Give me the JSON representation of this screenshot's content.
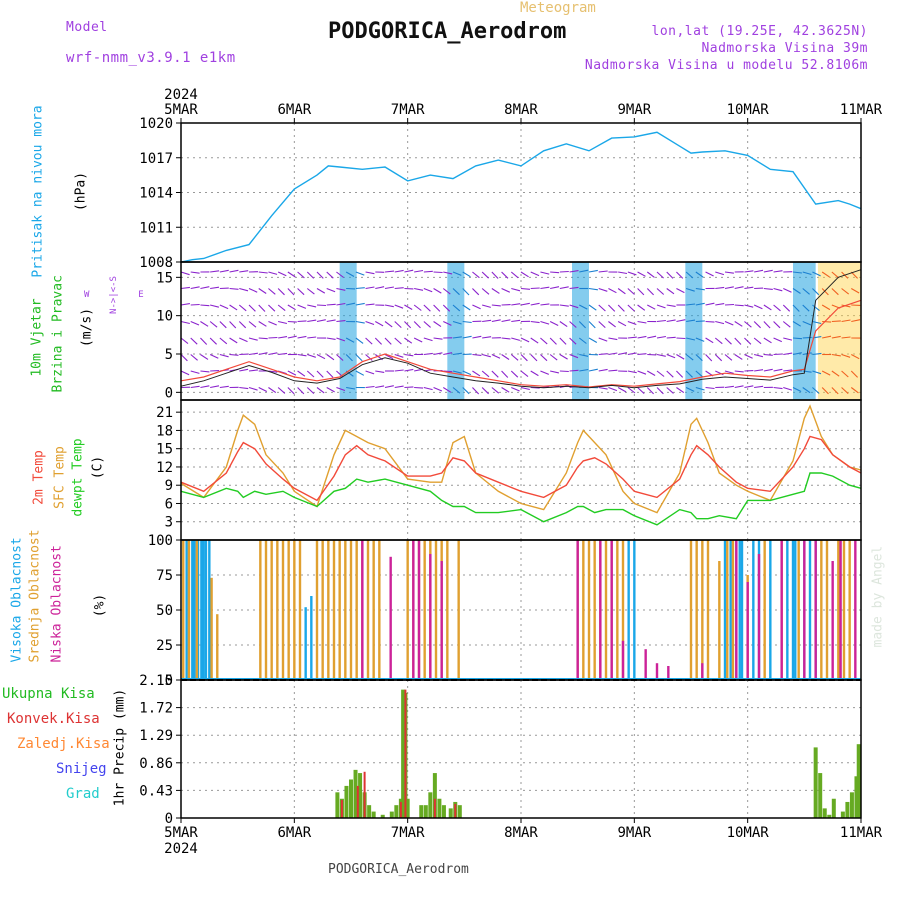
{
  "header": {
    "model_label": "Model",
    "model_name": "wrf-nmm_v3.9.1 e1km",
    "meteogram_label": "Meteogram",
    "station": "PODGORICA_Aerodrom",
    "lonlat": "lon,lat (19.25E, 42.3625N)",
    "altitude": "Nadmorska Visina 39m",
    "model_altitude": "Nadmorska Visina u modelu 52.8106m"
  },
  "footer": {
    "station": "PODGORICA_Aerodrom",
    "credit": "made by Angel"
  },
  "colors": {
    "pressure": "#1aa7e8",
    "wind_label": "#22bb22",
    "wind_barbs": "#8a22cc",
    "temp2m": "#f24a3a",
    "sfc": "#e0a030",
    "dew": "#22cc22",
    "high_cloud": "#1aa7e8",
    "mid_cloud": "#e0a030",
    "low_cloud": "#cc2299",
    "total_precip": "#66aa22",
    "conv_precip": "#dd3333",
    "frozen": "#ff8833",
    "snow": "#4444ee",
    "grad": "#22cccc"
  },
  "chart_data": [
    {
      "type": "line",
      "id": "pressure",
      "ylabel_lines": [
        "Pritisak na nivou mora",
        "(hPa)"
      ],
      "xticks": [
        "5MAR",
        "6MAR",
        "7MAR",
        "8MAR",
        "9MAR",
        "10MAR",
        "11MAR"
      ],
      "year_label": "2024",
      "ylim": [
        1008,
        1020
      ],
      "yticks": [
        1008,
        1011,
        1014,
        1017,
        1020
      ],
      "x": [
        0,
        0.1,
        0.2,
        0.4,
        0.6,
        0.8,
        1.0,
        1.2,
        1.3,
        1.4,
        1.6,
        1.8,
        2.0,
        2.2,
        2.4,
        2.6,
        2.8,
        3.0,
        3.2,
        3.4,
        3.6,
        3.8,
        4.0,
        4.2,
        4.4,
        4.5,
        4.6,
        4.8,
        5.0,
        5.2,
        5.4,
        5.6,
        5.8,
        5.9,
        6.0
      ],
      "series": [
        {
          "values": [
            1008,
            1008.2,
            1008.3,
            1009,
            1009.5,
            1012,
            1014.3,
            1015.5,
            1016.3,
            1016.2,
            1016,
            1016.2,
            1015,
            1015.5,
            1015.2,
            1016.3,
            1016.8,
            1016.3,
            1017.6,
            1018.2,
            1017.6,
            1018.7,
            1018.8,
            1019.2,
            1018,
            1017.4,
            1017.5,
            1017.6,
            1017.2,
            1016,
            1015.8,
            1013,
            1013.3,
            1013,
            1012.6
          ]
        }
      ]
    },
    {
      "type": "line",
      "id": "wind",
      "ylabel_lines": [
        "10m Vjetar",
        "Brzina i Pravac",
        "(m/s)"
      ],
      "ylim": [
        -1,
        17
      ],
      "yticks": [
        0,
        5,
        10,
        15
      ],
      "x": [
        0,
        0.2,
        0.4,
        0.6,
        0.8,
        1.0,
        1.2,
        1.4,
        1.6,
        1.8,
        2.0,
        2.2,
        2.4,
        2.6,
        2.8,
        3.0,
        3.2,
        3.4,
        3.6,
        3.8,
        4.0,
        4.2,
        4.4,
        4.6,
        4.8,
        5.0,
        5.2,
        5.4,
        5.5,
        5.6,
        5.8,
        6.0
      ],
      "series": [
        {
          "values": [
            1.5,
            2,
            3,
            4,
            3,
            2,
            1.5,
            2,
            4,
            5,
            4,
            3,
            2.5,
            2,
            1.5,
            1,
            0.8,
            1,
            0.7,
            1,
            0.8,
            1.1,
            1.4,
            2,
            2.5,
            2.2,
            2,
            2.8,
            3,
            8,
            11,
            12
          ]
        },
        {
          "values": [
            0.8,
            1.5,
            2.5,
            3.5,
            2.6,
            1.5,
            1.2,
            1.8,
            3.6,
            4.5,
            3.8,
            2.5,
            2,
            1.5,
            1.2,
            0.8,
            0.6,
            0.8,
            0.6,
            0.9,
            0.6,
            0.9,
            1.1,
            1.7,
            2,
            1.8,
            1.6,
            2.3,
            2.5,
            12,
            15,
            16
          ]
        }
      ]
    },
    {
      "type": "line",
      "id": "temperature",
      "ylabel_lines": [
        "2m Temp",
        "SFC Temp",
        "dewpt Temp",
        "(C)"
      ],
      "ylim": [
        0,
        23
      ],
      "yticks": [
        3,
        6,
        9,
        12,
        15,
        18,
        21
      ],
      "x": [
        0,
        0.2,
        0.4,
        0.5,
        0.55,
        0.65,
        0.75,
        0.9,
        1.0,
        1.2,
        1.35,
        1.45,
        1.55,
        1.65,
        1.8,
        2.0,
        2.2,
        2.3,
        2.4,
        2.5,
        2.6,
        2.8,
        3.0,
        3.2,
        3.4,
        3.5,
        3.55,
        3.65,
        3.75,
        3.9,
        4.0,
        4.2,
        4.4,
        4.5,
        4.55,
        4.65,
        4.75,
        4.9,
        5.0,
        5.2,
        5.4,
        5.5,
        5.55,
        5.65,
        5.75,
        5.9,
        6.0
      ],
      "series": [
        {
          "name": "2m Temp",
          "values": [
            9.5,
            8,
            11,
            14.5,
            16,
            15,
            12.5,
            10,
            8.5,
            6.5,
            10.5,
            14,
            15.5,
            14,
            13,
            10.5,
            10.5,
            11,
            13.5,
            13,
            11,
            9.5,
            8,
            7,
            9,
            12,
            13,
            13.5,
            12.5,
            10,
            8,
            7,
            10,
            14,
            15.5,
            14,
            12,
            9.5,
            8.5,
            8,
            12,
            15,
            17,
            16.5,
            14,
            12,
            11
          ]
        },
        {
          "name": "SFC Temp",
          "values": [
            9.3,
            7,
            12,
            18,
            20.5,
            19,
            14,
            11,
            8,
            5.5,
            14,
            18,
            17,
            16,
            15,
            10,
            9.5,
            9.5,
            16,
            17,
            11,
            8,
            6,
            5,
            11,
            16,
            18,
            16,
            14,
            8,
            6,
            4.5,
            11,
            19,
            20,
            16,
            11,
            9,
            8,
            6.5,
            13,
            20,
            22,
            17,
            14,
            12,
            11.5
          ]
        },
        {
          "name": "dewpt Temp",
          "values": [
            8,
            7,
            8.5,
            8,
            7,
            8,
            7.5,
            8,
            7,
            5.5,
            8,
            8.5,
            10,
            9.5,
            10,
            9,
            8,
            6.5,
            5.5,
            5.5,
            4.5,
            4.5,
            5,
            3,
            4.5,
            5.5,
            5.5,
            4.5,
            5,
            5,
            4,
            2.5,
            5,
            4.5,
            3.5,
            3.5,
            4,
            3.5,
            6.5,
            6.5,
            7.5,
            8,
            11,
            11,
            10.5,
            9,
            8.5
          ]
        }
      ]
    },
    {
      "type": "bar",
      "id": "clouds",
      "ylabel_lines": [
        "Visoka Oblacnost",
        "Srednja Oblacnost",
        "Niska Oblacnost",
        "(%)"
      ],
      "ylim": [
        0,
        100
      ],
      "yticks": [
        0,
        25,
        50,
        75,
        100
      ],
      "series": [
        {
          "name": "Visoka Oblacnost",
          "x": [
            0.05,
            0.1,
            0.12,
            0.15,
            0.18,
            0.2,
            0.22,
            0.25,
            1.1,
            1.15,
            3.95,
            4.0,
            4.8,
            4.85,
            4.9,
            4.93,
            4.95,
            5.05,
            5.1,
            5.2,
            5.35,
            5.4,
            5.42,
            5.5,
            5.55,
            5.6
          ],
          "values": [
            100,
            100,
            100,
            100,
            100,
            100,
            100,
            100,
            52,
            60,
            100,
            100,
            100,
            100,
            100,
            100,
            100,
            100,
            100,
            100,
            100,
            100,
            100,
            100,
            100,
            100
          ]
        },
        {
          "name": "Srednja Oblacnost",
          "x": [
            0.02,
            0.07,
            0.14,
            0.27,
            0.32,
            0.7,
            0.75,
            0.8,
            0.85,
            0.9,
            0.95,
            1.0,
            1.05,
            1.2,
            1.25,
            1.3,
            1.35,
            1.4,
            1.45,
            1.5,
            1.55,
            1.6,
            1.65,
            1.7,
            1.75,
            2.0,
            2.05,
            2.1,
            2.15,
            2.2,
            2.25,
            2.3,
            2.35,
            2.45,
            3.5,
            3.55,
            3.6,
            3.65,
            3.7,
            3.75,
            3.8,
            3.85,
            3.9,
            4.5,
            4.55,
            4.6,
            4.65,
            4.75,
            4.82,
            4.87,
            5.0,
            5.15,
            5.3,
            5.45,
            5.65,
            5.7,
            5.8,
            5.85,
            5.9
          ],
          "values": [
            100,
            100,
            100,
            73,
            47,
            100,
            100,
            100,
            100,
            100,
            100,
            100,
            100,
            100,
            100,
            100,
            100,
            100,
            100,
            100,
            100,
            100,
            100,
            100,
            100,
            100,
            100,
            100,
            100,
            100,
            100,
            100,
            100,
            100,
            100,
            100,
            100,
            100,
            100,
            100,
            100,
            100,
            100,
            100,
            100,
            100,
            100,
            85,
            100,
            100,
            75,
            100,
            100,
            100,
            100,
            100,
            100,
            100,
            100
          ]
        },
        {
          "name": "Niska Oblacnost",
          "x": [
            1.6,
            1.85,
            2.05,
            2.1,
            2.2,
            2.3,
            3.5,
            3.7,
            3.8,
            3.9,
            4.1,
            4.2,
            4.3,
            4.6,
            4.9,
            5.0,
            5.1,
            5.3,
            5.5,
            5.6,
            5.75,
            5.82,
            5.95
          ],
          "values": [
            100,
            88,
            100,
            100,
            90,
            85,
            100,
            100,
            100,
            28,
            22,
            12,
            10,
            12,
            100,
            70,
            90,
            100,
            100,
            100,
            85,
            100,
            100
          ]
        }
      ]
    },
    {
      "type": "bar",
      "id": "precip",
      "ylabel_lines": [
        "1hr Precip (mm)"
      ],
      "legend": [
        "Ukupna Kisa",
        "Konvek.Kisa",
        "Zaledj.Kisa",
        "Snijeg",
        "Grad"
      ],
      "ylim": [
        0,
        2.15
      ],
      "yticks": [
        0,
        0.43,
        0.86,
        1.29,
        1.72,
        2.15
      ],
      "xticks": [
        "5MAR",
        "6MAR",
        "7MAR",
        "8MAR",
        "9MAR",
        "10MAR",
        "11MAR"
      ],
      "year_label": "2024",
      "series": [
        {
          "name": "Ukupna Kisa",
          "x": [
            1.38,
            1.42,
            1.46,
            1.5,
            1.54,
            1.58,
            1.62,
            1.66,
            1.7,
            1.78,
            1.86,
            1.9,
            1.94,
            1.96,
            1.98,
            2.0,
            2.12,
            2.16,
            2.2,
            2.24,
            2.28,
            2.32,
            2.38,
            2.42,
            2.46,
            5.6,
            5.64,
            5.68,
            5.72,
            5.76,
            5.84,
            5.88,
            5.92,
            5.96,
            5.98
          ],
          "values": [
            0.4,
            0.3,
            0.5,
            0.6,
            0.75,
            0.7,
            0.4,
            0.2,
            0.1,
            0.05,
            0.1,
            0.2,
            0.3,
            2.0,
            1.95,
            0.3,
            0.2,
            0.2,
            0.4,
            0.7,
            0.3,
            0.2,
            0.15,
            0.25,
            0.2,
            1.1,
            0.7,
            0.15,
            0.05,
            0.3,
            0.1,
            0.25,
            0.4,
            0.65,
            1.15
          ]
        },
        {
          "name": "Konvek.Kisa",
          "x": [
            1.42,
            1.56,
            1.62,
            1.94,
            1.98,
            2.24,
            2.42
          ],
          "values": [
            0.28,
            0.5,
            0.72,
            0.25,
            2.0,
            0.3,
            0.22
          ]
        }
      ]
    }
  ]
}
